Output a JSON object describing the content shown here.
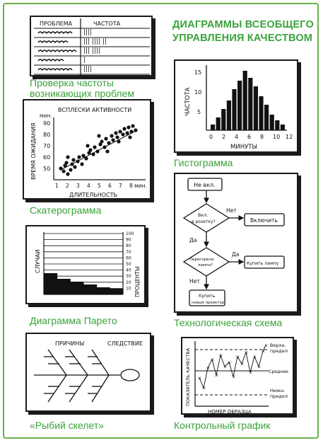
{
  "title": {
    "line1": "ДИАГРАММЫ ВСЕОБЩЕГО",
    "line2": "УПРАВЛЕНИЯ КАЧЕСТВОМ"
  },
  "captions": {
    "check_sheet_line1": "Проверка частоты",
    "check_sheet_line2": "возникающих проблем",
    "histogram": "Гистограмма",
    "scatter": "Скатерограмма",
    "flowchart": "Технологическая схема",
    "pareto": "Диаграмма Парето",
    "fishbone": "«Рыбий скелет»",
    "control": "Контрольный график"
  },
  "check_sheet": {
    "header_problem": "ПРОБЛЕМА",
    "header_frequency": "ЧАСТОТА",
    "rows": [
      "||||",
      "||| |||| ||",
      "||| ||||",
      "|",
      "||||"
    ]
  },
  "histogram": {
    "ylabel": "ЧАСТОТА",
    "xlabel": "МИНУТЫ",
    "y_ticks": [
      "5",
      "10",
      "15"
    ],
    "x_ticks": [
      "0",
      "2",
      "4",
      "6",
      "8",
      "10",
      "12"
    ]
  },
  "scatter": {
    "title": "ВСПЛЕСКИ АКТИВНОСТИ",
    "ylabel": "ВРЕМЯ ОЖИДАНИЯ",
    "y_unit": "МИН.",
    "xlabel": "ДЛИТЕЛЬНОСТЬ",
    "y_ticks": [
      "90",
      "80",
      "70",
      "60",
      "50"
    ],
    "x_ticks": [
      "1",
      "2",
      "3",
      "4",
      "5",
      "6",
      "7",
      "8 мин."
    ]
  },
  "flowchart": {
    "start": "Не вкл.",
    "decision1_line1": "Вкл.",
    "decision1_line2": "в розетку?",
    "no1": "Нет",
    "action1": "Включить",
    "yes1": "Да",
    "decision2_line1": "Перегорела",
    "decision2_line2": "лампа?",
    "yes2": "Да",
    "action2": "Купить лампу",
    "no2": "Нет",
    "action3_line1": "Купить",
    "action3_line2": "новый проектор"
  },
  "pareto": {
    "ylabel_left": "СЛУЧАИ",
    "ylabel_right": "ПРОЦЕНТЫ",
    "right_ticks": [
      "100",
      "90",
      "80",
      "70",
      "60",
      "50",
      "40",
      "30",
      "20",
      "10"
    ]
  },
  "fishbone": {
    "causes": "ПРИЧИНЫ",
    "effect": "СЛЕДСТВИЕ"
  },
  "control": {
    "ylabel": "ПОКАЗАТЕЛЬ КАЧЕСТВА",
    "xlabel": "НОМЕР ОБРАЗЦА",
    "upper_line1": "Верхн.",
    "upper_line2": "предел",
    "mean": "Среднее",
    "lower_line1": "Нижн.",
    "lower_line2": "предел"
  },
  "colors": {
    "accent": "#3aa23a",
    "frame": "#6ab04c",
    "ink": "#1a1a1a"
  }
}
